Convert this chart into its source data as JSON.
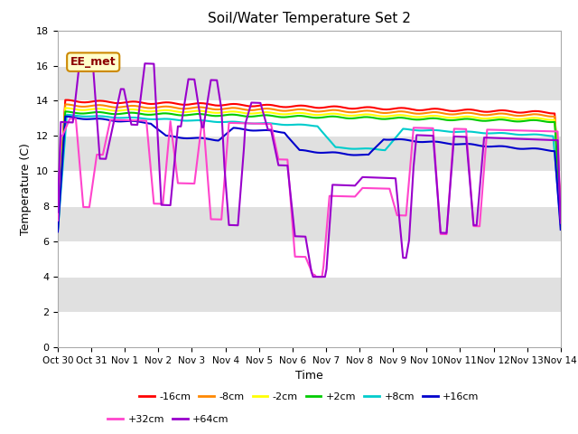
{
  "title": "Soil/Water Temperature Set 2",
  "xlabel": "Time",
  "ylabel": "Temperature (C)",
  "ylim": [
    0,
    18
  ],
  "yticks": [
    0,
    2,
    4,
    6,
    8,
    10,
    12,
    14,
    16,
    18
  ],
  "annotation_text": "EE_met",
  "bg_color": "#e8e8e8",
  "series": {
    "-16cm": {
      "color": "#ff0000",
      "lw": 1.5
    },
    "-8cm": {
      "color": "#ff8800",
      "lw": 1.5
    },
    "-2cm": {
      "color": "#ffff00",
      "lw": 1.5
    },
    "+2cm": {
      "color": "#00cc00",
      "lw": 1.5
    },
    "+8cm": {
      "color": "#00cccc",
      "lw": 1.5
    },
    "+16cm": {
      "color": "#0000cc",
      "lw": 1.5
    },
    "+32cm": {
      "color": "#ff44cc",
      "lw": 1.5
    },
    "+64cm": {
      "color": "#9900cc",
      "lw": 1.5
    }
  },
  "n_points": 336,
  "x_start": 0,
  "x_end": 15,
  "xtick_positions": [
    0,
    1,
    2,
    3,
    4,
    5,
    6,
    7,
    8,
    9,
    10,
    11,
    12,
    13,
    14,
    15
  ],
  "xtick_labels": [
    "Oct 30",
    "Oct 31",
    "Nov 1",
    "Nov 2",
    "Nov 3",
    "Nov 4",
    "Nov 5",
    "Nov 6",
    "Nov 7",
    "Nov 8",
    "Nov 9",
    "Nov 10",
    "Nov 11",
    "Nov 12",
    "Nov 13",
    "Nov 14"
  ],
  "band_colors": [
    "#ffffff",
    "#e0e0e0"
  ],
  "band_edges": [
    0,
    2,
    4,
    6,
    8,
    10,
    12,
    14,
    16,
    18
  ]
}
